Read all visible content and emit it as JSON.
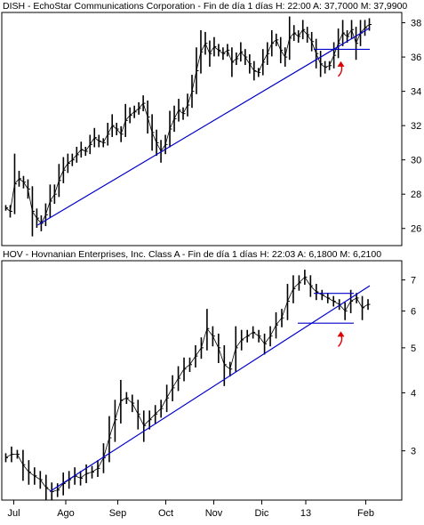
{
  "chart_data": [
    {
      "type": "line",
      "title": "DISH - EchoStar Communications Corporation - Fin de día 1 días H: 22:00  A: 37,7000  M: 37,9900",
      "xlabel": "",
      "ylabel": "",
      "ylim": [
        25.0,
        38.6
      ],
      "y_ticks": [
        26,
        28,
        30,
        32,
        34,
        36,
        38
      ],
      "grid": false,
      "series": [
        {
          "values": [
            27.2,
            27.0,
            28.6,
            28.9,
            28.7,
            28.3,
            27.0,
            26.6,
            26.3,
            26.8,
            27.6,
            28.0,
            28.8,
            29.4,
            29.8,
            30.0,
            30.3,
            30.6,
            30.5,
            30.9,
            31.3,
            31.1,
            31.0,
            31.5,
            32.0,
            31.8,
            31.5,
            32.3,
            32.6,
            32.8,
            33.0,
            33.3,
            32.5,
            31.6,
            31.0,
            30.5,
            30.9,
            31.8,
            32.4,
            32.9,
            32.7,
            33.2,
            34.0,
            35.2,
            36.3,
            36.8,
            36.2,
            36.6,
            36.4,
            36.2,
            36.4,
            35.7,
            35.9,
            36.3,
            36.0,
            35.6,
            35.2,
            35.1,
            35.7,
            36.2,
            36.8,
            37.0,
            36.4,
            36.0,
            37.1,
            37.4,
            37.2,
            37.6,
            37.3,
            36.9,
            36.2,
            35.6,
            35.4,
            35.5,
            36.1,
            36.8,
            37.4,
            37.2,
            37.6,
            36.8,
            37.4,
            37.7,
            37.9
          ]
        }
      ],
      "trendline": {
        "from": [
          9,
          26.2
        ],
        "to": [
          92,
          37.7
        ]
      },
      "support_line": {
        "from": [
          78,
          36.45
        ],
        "to": [
          92,
          36.45
        ]
      },
      "arrow": {
        "x": 85,
        "y": 35.7
      }
    },
    {
      "type": "line",
      "title": "HOV - Hovnanian Enterprises, Inc. Class A - Fin de día 1 días H: 22:03  A: 6,1800  M: 6,2100",
      "xlabel": "",
      "ylabel": "",
      "ylim": [
        2.35,
        7.7
      ],
      "y_ticks": [
        3,
        4,
        5,
        6,
        7
      ],
      "log_scale": true,
      "grid": false,
      "series": [
        {
          "values": [
            2.9,
            2.95,
            2.95,
            2.8,
            2.7,
            2.65,
            2.6,
            2.5,
            2.45,
            2.47,
            2.55,
            2.6,
            2.65,
            2.62,
            2.68,
            2.7,
            2.75,
            2.9,
            3.2,
            3.5,
            3.85,
            3.9,
            3.8,
            3.6,
            3.4,
            3.5,
            3.6,
            3.7,
            3.9,
            4.1,
            4.3,
            4.5,
            4.6,
            4.8,
            5.0,
            5.5,
            5.3,
            5.0,
            4.6,
            4.5,
            5.0,
            5.2,
            5.3,
            5.4,
            5.3,
            5.1,
            5.3,
            5.6,
            5.8,
            6.3,
            6.7,
            6.9,
            7.1,
            6.8,
            6.6,
            6.5,
            6.4,
            6.3,
            6.2,
            6.0,
            6.3,
            6.4,
            6.1,
            6.2
          ]
        }
      ],
      "trendline": {
        "from": [
          12,
          2.45
        ],
        "to": [
          92,
          6.8
        ]
      },
      "upper_channel_line": {
        "from": [
          78,
          6.55
        ],
        "to": [
          88,
          6.55
        ]
      },
      "support_line": {
        "from": [
          74,
          5.65
        ],
        "to": [
          88,
          5.65
        ]
      },
      "arrow": {
        "x": 85,
        "y": 5.4
      }
    }
  ],
  "x_axis": {
    "labels": [
      "Jul",
      "Ago",
      "Sep",
      "Oct",
      "Nov",
      "Dic",
      "13",
      "Feb"
    ],
    "positions": [
      3,
      16,
      29,
      41,
      53,
      65,
      76,
      91
    ],
    "domain": [
      0,
      100
    ]
  },
  "colors": {
    "price": "#000000",
    "trendline": "#0000cc",
    "annotation_arrow": "#dd0000",
    "frame": "#000000",
    "background": "#ffffff"
  }
}
